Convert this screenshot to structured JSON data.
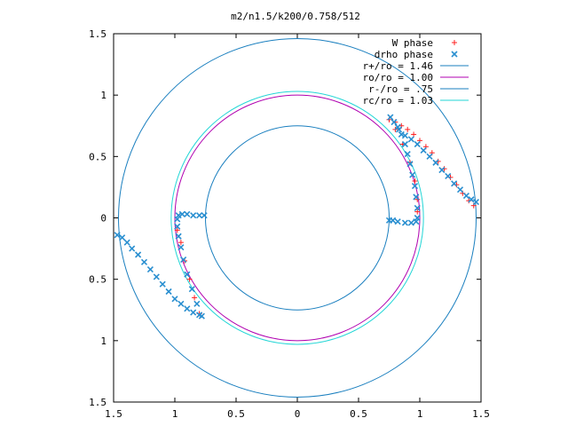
{
  "chart_data": {
    "type": "scatter",
    "title": "m2/n1.5/k200/0.758/512",
    "xlim": [
      -1.5,
      1.5
    ],
    "ylim": [
      -1.5,
      1.5
    ],
    "x_tick_values": [
      -1.5,
      -1,
      -0.5,
      0,
      0.5,
      1,
      1.5
    ],
    "x_tick_labels": [
      "1.5",
      "1",
      "0.5",
      "0",
      "0.5",
      "1",
      "1.5"
    ],
    "y_tick_values": [
      1.5,
      1,
      0.5,
      0,
      -0.5,
      -1,
      -1.5
    ],
    "y_tick_labels": [
      "1.5",
      "1",
      "0.5",
      "0",
      "0.5",
      "1",
      "1.5"
    ],
    "legend_position": "top-right",
    "circles": [
      {
        "name": "r+/ro = 1.46",
        "radius": 1.46,
        "color": "#1a7fbf"
      },
      {
        "name": "ro/ro = 1.00",
        "radius": 1.0,
        "color": "#b000b0"
      },
      {
        "name": "r-/ro = .75",
        "radius": 0.75,
        "color": "#1a7fbf"
      },
      {
        "name": "rc/ro = 1.03",
        "radius": 1.03,
        "color": "#22d6d6"
      }
    ],
    "series": [
      {
        "name": "W phase",
        "marker": "plus",
        "color": "#ff2020",
        "x": [
          0.75,
          0.8,
          0.85,
          0.9,
          0.95,
          1.0,
          1.05,
          1.1,
          1.15,
          1.2,
          1.25,
          1.3,
          1.35,
          1.4,
          1.44,
          0.8,
          0.86,
          0.92,
          0.96,
          0.98,
          0.98,
          -0.8,
          -0.84,
          -0.88,
          -0.92,
          -0.95,
          -0.98
        ],
        "y": [
          0.8,
          0.78,
          0.75,
          0.72,
          0.68,
          0.63,
          0.58,
          0.53,
          0.46,
          0.4,
          0.33,
          0.27,
          0.2,
          0.14,
          0.1,
          0.72,
          0.6,
          0.45,
          0.3,
          0.15,
          0.05,
          -0.78,
          -0.65,
          -0.5,
          -0.35,
          -0.2,
          -0.1
        ]
      },
      {
        "name": "drho phase",
        "marker": "cross",
        "color": "#2a8fd0",
        "x": [
          0.76,
          0.79,
          0.82,
          0.85,
          0.88,
          0.9,
          0.92,
          0.94,
          0.96,
          0.97,
          0.98,
          0.98,
          0.97,
          0.93,
          0.88,
          0.82,
          0.78,
          0.75,
          0.83,
          0.88,
          0.93,
          0.98,
          1.03,
          1.08,
          1.13,
          1.18,
          1.23,
          1.28,
          1.33,
          1.38,
          1.42,
          1.46,
          -1.47,
          -1.43,
          -1.39,
          -1.35,
          -1.3,
          -1.25,
          -1.2,
          -1.15,
          -1.1,
          -1.05,
          -1.0,
          -0.95,
          -0.9,
          -0.85,
          -0.8,
          -0.78,
          -0.82,
          -0.86,
          -0.9,
          -0.93,
          -0.95,
          -0.97,
          -0.98,
          -0.98,
          -0.97,
          -0.94,
          -0.9,
          -0.85,
          -0.8,
          -0.76
        ],
        "y": [
          0.82,
          0.78,
          0.74,
          0.68,
          0.6,
          0.52,
          0.44,
          0.35,
          0.26,
          0.17,
          0.08,
          0.0,
          -0.03,
          -0.04,
          -0.04,
          -0.03,
          -0.02,
          -0.02,
          0.72,
          0.67,
          0.64,
          0.6,
          0.55,
          0.5,
          0.45,
          0.39,
          0.34,
          0.28,
          0.23,
          0.18,
          0.15,
          0.13,
          -0.14,
          -0.16,
          -0.2,
          -0.25,
          -0.3,
          -0.36,
          -0.42,
          -0.48,
          -0.54,
          -0.6,
          -0.66,
          -0.7,
          -0.74,
          -0.77,
          -0.79,
          -0.8,
          -0.7,
          -0.58,
          -0.46,
          -0.34,
          -0.24,
          -0.15,
          -0.07,
          -0.01,
          0.02,
          0.03,
          0.03,
          0.02,
          0.02,
          0.02
        ]
      }
    ]
  },
  "colors": {
    "background": "#ffffff",
    "frame": "#000000"
  }
}
